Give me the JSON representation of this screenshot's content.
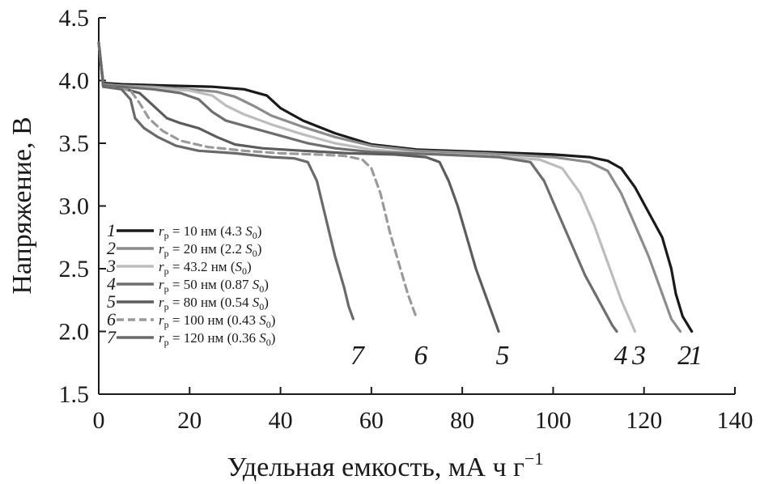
{
  "chart_data": {
    "type": "line",
    "xlabel": "Удельная емкость, мА ч г",
    "xlabel_sup": "−1",
    "ylabel": "Напряжение, В",
    "xlim": [
      0,
      140
    ],
    "ylim": [
      1.5,
      4.5
    ],
    "x_ticks": [
      "0",
      "20",
      "40",
      "60",
      "80",
      "100",
      "120",
      "140"
    ],
    "y_ticks": [
      "1.5",
      "2.0",
      "2.5",
      "3.0",
      "3.5",
      "4.0",
      "4.5"
    ],
    "grid": false,
    "legend_position": "bottom-left",
    "series": [
      {
        "id": "1",
        "num": "1",
        "legend": "= 10 нм (4.3 ",
        "legend_close": ")",
        "curve_label": "1",
        "color": "#1a1a1a",
        "dash": false,
        "points": [
          [
            0,
            4.3
          ],
          [
            1,
            3.98
          ],
          [
            5,
            3.97
          ],
          [
            15,
            3.96
          ],
          [
            25,
            3.95
          ],
          [
            32,
            3.93
          ],
          [
            37,
            3.88
          ],
          [
            40,
            3.78
          ],
          [
            45,
            3.68
          ],
          [
            52,
            3.58
          ],
          [
            60,
            3.49
          ],
          [
            70,
            3.45
          ],
          [
            85,
            3.43
          ],
          [
            100,
            3.41
          ],
          [
            108,
            3.39
          ],
          [
            112,
            3.36
          ],
          [
            115,
            3.3
          ],
          [
            118,
            3.15
          ],
          [
            121,
            2.95
          ],
          [
            124,
            2.75
          ],
          [
            126,
            2.5
          ],
          [
            127,
            2.3
          ],
          [
            128.5,
            2.12
          ],
          [
            130.5,
            2.0
          ]
        ]
      },
      {
        "id": "2",
        "num": "2",
        "legend": "= 20 нм (2.2 ",
        "legend_close": ")",
        "curve_label": "2",
        "color": "#8c8c8c",
        "dash": false,
        "points": [
          [
            0,
            4.3
          ],
          [
            1,
            3.97
          ],
          [
            5,
            3.96
          ],
          [
            12,
            3.95
          ],
          [
            20,
            3.93
          ],
          [
            26,
            3.91
          ],
          [
            30,
            3.87
          ],
          [
            34,
            3.8
          ],
          [
            38,
            3.72
          ],
          [
            45,
            3.63
          ],
          [
            52,
            3.55
          ],
          [
            60,
            3.48
          ],
          [
            70,
            3.44
          ],
          [
            85,
            3.42
          ],
          [
            100,
            3.39
          ],
          [
            108,
            3.35
          ],
          [
            112,
            3.28
          ],
          [
            115,
            3.1
          ],
          [
            118,
            2.85
          ],
          [
            121,
            2.6
          ],
          [
            123,
            2.4
          ],
          [
            126,
            2.1
          ],
          [
            128,
            2.0
          ]
        ]
      },
      {
        "id": "3",
        "num": "3",
        "legend": "= 43.2 нм (",
        "legend_close": ")",
        "curve_label": "3",
        "color": "#bdbdbd",
        "dash": false,
        "points": [
          [
            0,
            4.3
          ],
          [
            1,
            3.96
          ],
          [
            5,
            3.95
          ],
          [
            12,
            3.94
          ],
          [
            20,
            3.92
          ],
          [
            25,
            3.88
          ],
          [
            28,
            3.8
          ],
          [
            32,
            3.73
          ],
          [
            38,
            3.65
          ],
          [
            45,
            3.57
          ],
          [
            52,
            3.5
          ],
          [
            60,
            3.45
          ],
          [
            70,
            3.42
          ],
          [
            85,
            3.4
          ],
          [
            97,
            3.37
          ],
          [
            102,
            3.3
          ],
          [
            106,
            3.1
          ],
          [
            109,
            2.85
          ],
          [
            112,
            2.55
          ],
          [
            115,
            2.25
          ],
          [
            118,
            2.0
          ]
        ]
      },
      {
        "id": "4",
        "num": "4",
        "legend": "= 50 нм (0.87 ",
        "legend_close": ")",
        "curve_label": "4",
        "color": "#6e6e6e",
        "dash": false,
        "points": [
          [
            0,
            4.3
          ],
          [
            1,
            3.96
          ],
          [
            5,
            3.95
          ],
          [
            12,
            3.93
          ],
          [
            18,
            3.9
          ],
          [
            22,
            3.85
          ],
          [
            25,
            3.75
          ],
          [
            28,
            3.68
          ],
          [
            34,
            3.62
          ],
          [
            40,
            3.56
          ],
          [
            46,
            3.5
          ],
          [
            52,
            3.46
          ],
          [
            60,
            3.43
          ],
          [
            75,
            3.41
          ],
          [
            88,
            3.39
          ],
          [
            95,
            3.35
          ],
          [
            98,
            3.2
          ],
          [
            101,
            2.95
          ],
          [
            104,
            2.7
          ],
          [
            107,
            2.45
          ],
          [
            110,
            2.25
          ],
          [
            113,
            2.05
          ],
          [
            114,
            2.0
          ]
        ]
      },
      {
        "id": "5",
        "num": "5",
        "legend": "= 80 нм (0.54 ",
        "legend_close": ")",
        "curve_label": "5",
        "color": "#5c5c5c",
        "dash": false,
        "points": [
          [
            0,
            4.3
          ],
          [
            1,
            3.95
          ],
          [
            5,
            3.94
          ],
          [
            9,
            3.9
          ],
          [
            12,
            3.8
          ],
          [
            15,
            3.7
          ],
          [
            18,
            3.66
          ],
          [
            22,
            3.62
          ],
          [
            26,
            3.55
          ],
          [
            30,
            3.49
          ],
          [
            36,
            3.46
          ],
          [
            45,
            3.44
          ],
          [
            55,
            3.42
          ],
          [
            65,
            3.41
          ],
          [
            72,
            3.39
          ],
          [
            75,
            3.35
          ],
          [
            77,
            3.2
          ],
          [
            79,
            3.0
          ],
          [
            81,
            2.75
          ],
          [
            83,
            2.5
          ],
          [
            85,
            2.3
          ],
          [
            88,
            2.0
          ]
        ]
      },
      {
        "id": "6",
        "num": "6",
        "legend": "= 100 нм (0.43 ",
        "legend_close": ")",
        "curve_label": "6",
        "color": "#9a9a9a",
        "dash": true,
        "points": [
          [
            0,
            4.3
          ],
          [
            1,
            3.95
          ],
          [
            4,
            3.94
          ],
          [
            7,
            3.92
          ],
          [
            9,
            3.82
          ],
          [
            11,
            3.7
          ],
          [
            14,
            3.6
          ],
          [
            18,
            3.52
          ],
          [
            24,
            3.47
          ],
          [
            32,
            3.44
          ],
          [
            40,
            3.42
          ],
          [
            48,
            3.41
          ],
          [
            54,
            3.4
          ],
          [
            58,
            3.37
          ],
          [
            60,
            3.3
          ],
          [
            62,
            3.1
          ],
          [
            64,
            2.8
          ],
          [
            66,
            2.55
          ],
          [
            68,
            2.3
          ],
          [
            70,
            2.1
          ]
        ]
      },
      {
        "id": "7",
        "num": "7",
        "legend": "= 120 нм (0.36 ",
        "legend_close": ")",
        "curve_label": "7",
        "color": "#6a6a6a",
        "dash": false,
        "points": [
          [
            0,
            4.3
          ],
          [
            1,
            3.95
          ],
          [
            5,
            3.93
          ],
          [
            7,
            3.85
          ],
          [
            8,
            3.7
          ],
          [
            10,
            3.62
          ],
          [
            13,
            3.55
          ],
          [
            17,
            3.48
          ],
          [
            22,
            3.44
          ],
          [
            30,
            3.42
          ],
          [
            38,
            3.39
          ],
          [
            43,
            3.38
          ],
          [
            46,
            3.35
          ],
          [
            48,
            3.2
          ],
          [
            50,
            2.9
          ],
          [
            52,
            2.6
          ],
          [
            54,
            2.35
          ],
          [
            55,
            2.2
          ],
          [
            56,
            2.1
          ]
        ]
      }
    ]
  }
}
